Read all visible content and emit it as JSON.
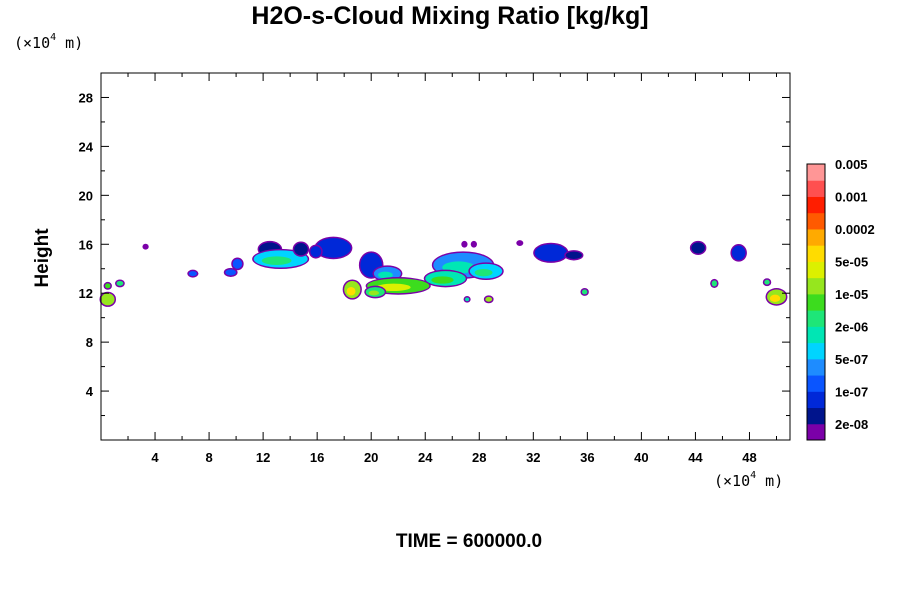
{
  "chart_data": {
    "type": "heatmap",
    "title": "H2O-s-Cloud Mixing Ratio [kg/kg]",
    "ylabel": "Height",
    "x_unit": "m",
    "y_unit": "m",
    "unit_scale_base": "(×10",
    "unit_scale_exp": "4",
    "unit_close": " m)",
    "xlim": [
      0,
      51
    ],
    "ylim": [
      0,
      30
    ],
    "x_ticks": [
      4,
      8,
      12,
      16,
      20,
      24,
      28,
      32,
      36,
      40,
      44,
      48
    ],
    "y_ticks": [
      4,
      8,
      12,
      16,
      20,
      24,
      28
    ],
    "footer_label": "TIME = 600000.0",
    "colorbar": {
      "colors": [
        "#7b00a8",
        "#00148c",
        "#0028d8",
        "#0a55ff",
        "#1e8cff",
        "#00d4ff",
        "#00e6b4",
        "#1ee678",
        "#3cdc1e",
        "#96e61e",
        "#dcf000",
        "#ffdc00",
        "#ffaa00",
        "#ff5a00",
        "#ff1e00",
        "#ff5050",
        "#ff9696"
      ],
      "labels": [
        "2e-08",
        "1e-07",
        "5e-07",
        "2e-06",
        "1e-05",
        "5e-05",
        "0.0002",
        "0.001",
        "0.005"
      ]
    },
    "cloud_blobs": [
      {
        "x": 12.5,
        "y": 15.6,
        "rx": 0.8,
        "ry": 0.55,
        "c": 1
      },
      {
        "x": 13.3,
        "y": 14.8,
        "rx": 2.0,
        "ry": 0.7,
        "c": 5
      },
      {
        "x": 14.8,
        "y": 15.6,
        "rx": 0.5,
        "ry": 0.5,
        "c": 1
      },
      {
        "x": 10.1,
        "y": 14.4,
        "rx": 0.35,
        "ry": 0.4,
        "c": 3
      },
      {
        "x": 17.2,
        "y": 15.7,
        "rx": 1.3,
        "ry": 0.8,
        "c": 2
      },
      {
        "x": 15.9,
        "y": 15.4,
        "rx": 0.4,
        "ry": 0.45,
        "c": 2
      },
      {
        "x": 20.0,
        "y": 14.3,
        "rx": 0.8,
        "ry": 1.0,
        "c": 2
      },
      {
        "x": 21.2,
        "y": 13.6,
        "rx": 1.0,
        "ry": 0.55,
        "c": 4
      },
      {
        "x": 26.8,
        "y": 14.3,
        "rx": 2.2,
        "ry": 1.0,
        "c": 4
      },
      {
        "x": 28.5,
        "y": 13.8,
        "rx": 1.2,
        "ry": 0.6,
        "c": 5
      },
      {
        "x": 25.5,
        "y": 13.2,
        "rx": 1.5,
        "ry": 0.6,
        "c": 6
      },
      {
        "x": 22.0,
        "y": 12.6,
        "rx": 2.3,
        "ry": 0.6,
        "c": 8
      },
      {
        "x": 18.6,
        "y": 12.3,
        "rx": 0.6,
        "ry": 0.7,
        "c": 9
      },
      {
        "x": 20.3,
        "y": 12.1,
        "rx": 0.7,
        "ry": 0.4,
        "c": 7
      },
      {
        "x": 33.3,
        "y": 15.3,
        "rx": 1.2,
        "ry": 0.7,
        "c": 2
      },
      {
        "x": 35.0,
        "y": 15.1,
        "rx": 0.6,
        "ry": 0.3,
        "c": 1
      },
      {
        "x": 44.2,
        "y": 15.7,
        "rx": 0.5,
        "ry": 0.45,
        "c": 1
      },
      {
        "x": 47.2,
        "y": 15.3,
        "rx": 0.5,
        "ry": 0.6,
        "c": 2
      },
      {
        "x": 6.8,
        "y": 13.6,
        "rx": 0.3,
        "ry": 0.2,
        "c": 3
      },
      {
        "x": 9.6,
        "y": 13.7,
        "rx": 0.4,
        "ry": 0.25,
        "c": 3
      },
      {
        "x": 0.5,
        "y": 11.5,
        "rx": 0.5,
        "ry": 0.5,
        "c": 9
      },
      {
        "x": 0.5,
        "y": 12.6,
        "rx": 0.2,
        "ry": 0.2,
        "c": 8
      },
      {
        "x": 1.4,
        "y": 12.8,
        "rx": 0.25,
        "ry": 0.2,
        "c": 7
      },
      {
        "x": 50.0,
        "y": 11.7,
        "rx": 0.7,
        "ry": 0.6,
        "c": 9
      },
      {
        "x": 49.3,
        "y": 12.9,
        "rx": 0.2,
        "ry": 0.2,
        "c": 7
      },
      {
        "x": 45.4,
        "y": 12.8,
        "rx": 0.2,
        "ry": 0.25,
        "c": 7
      },
      {
        "x": 35.8,
        "y": 12.1,
        "rx": 0.2,
        "ry": 0.2,
        "c": 7
      },
      {
        "x": 28.7,
        "y": 11.5,
        "rx": 0.25,
        "ry": 0.2,
        "c": 9
      },
      {
        "x": 27.1,
        "y": 11.5,
        "rx": 0.15,
        "ry": 0.15,
        "c": 6
      },
      {
        "x": 3.3,
        "y": 15.8,
        "rx": 0.12,
        "ry": 0.12,
        "c": 0
      },
      {
        "x": 26.9,
        "y": 16.0,
        "rx": 0.12,
        "ry": 0.15,
        "c": 0
      },
      {
        "x": 27.6,
        "y": 16.0,
        "rx": 0.12,
        "ry": 0.15,
        "c": 0
      },
      {
        "x": 31.0,
        "y": 16.1,
        "rx": 0.15,
        "ry": 0.12,
        "c": 0
      }
    ]
  }
}
